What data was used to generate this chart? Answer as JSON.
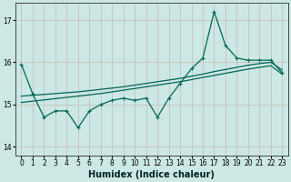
{
  "xlabel": "Humidex (Indice chaleur)",
  "background_color": "#cce8e4",
  "grid_color": "#c8b8b8",
  "line_color": "#006655",
  "xlim": [
    -0.5,
    23.5
  ],
  "ylim": [
    13.8,
    17.4
  ],
  "yticks": [
    14,
    15,
    16,
    17
  ],
  "xticks": [
    0,
    1,
    2,
    3,
    4,
    5,
    6,
    7,
    8,
    9,
    10,
    11,
    12,
    13,
    14,
    15,
    16,
    17,
    18,
    19,
    20,
    21,
    22,
    23
  ],
  "main_data": [
    15.95,
    15.25,
    14.7,
    14.85,
    14.85,
    14.45,
    14.85,
    15.0,
    15.1,
    15.15,
    15.1,
    15.15,
    14.7,
    15.15,
    15.5,
    15.85,
    16.1,
    17.2,
    16.4,
    16.1,
    16.05,
    16.05,
    16.05,
    15.75
  ],
  "trend1": [
    15.2,
    15.22,
    15.24,
    15.26,
    15.28,
    15.3,
    15.33,
    15.36,
    15.39,
    15.42,
    15.46,
    15.5,
    15.54,
    15.58,
    15.62,
    15.67,
    15.72,
    15.78,
    15.83,
    15.88,
    15.93,
    15.97,
    16.0,
    15.82
  ],
  "trend2": [
    15.05,
    15.08,
    15.11,
    15.14,
    15.17,
    15.2,
    15.23,
    15.26,
    15.3,
    15.34,
    15.38,
    15.42,
    15.46,
    15.5,
    15.54,
    15.59,
    15.64,
    15.69,
    15.74,
    15.79,
    15.84,
    15.88,
    15.92,
    15.72
  ],
  "tick_labelsize": 5.5,
  "xlabel_fontsize": 7
}
